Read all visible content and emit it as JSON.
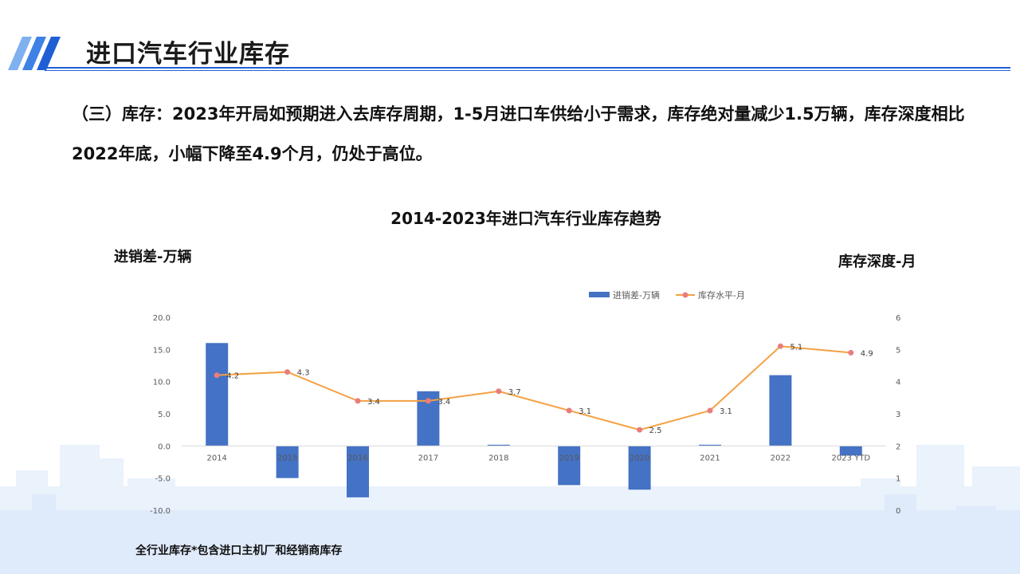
{
  "header": {
    "title": "进口汽车行业库存",
    "accent_color": "#1f5fd6"
  },
  "summary": {
    "text": "（三）库存：2023年开局如预期进入去库存周期，1-5月进口车供给小于需求，库存绝对量减少1.5万辆，库存深度相比2022年底，小幅下降至4.9个月，仍处于高位。"
  },
  "chart_data": {
    "type": "bar+line",
    "title": "2014-2023年进口汽车行业库存趋势",
    "left_axis_title": "进销差-万辆",
    "right_axis_title": "库存深度-月",
    "categories": [
      "2014",
      "2015",
      "2016",
      "2017",
      "2018",
      "2019",
      "2020",
      "2021",
      "2022",
      "2023 YTD"
    ],
    "series": [
      {
        "name": "进销差-万辆",
        "type": "bar",
        "axis": "left",
        "color": "#4472c4",
        "values": [
          16.0,
          -5.0,
          -8.0,
          8.5,
          0.1,
          -6.1,
          -6.8,
          0.1,
          11.0,
          -1.5
        ]
      },
      {
        "name": "库存水平-月",
        "type": "line",
        "axis": "right",
        "color": "#f4a142",
        "marker_color": "#e97d7d",
        "values": [
          4.2,
          4.3,
          3.4,
          3.4,
          3.7,
          3.1,
          2.5,
          3.1,
          5.1,
          4.9
        ],
        "labels": [
          "4.2",
          "4.3",
          "3.4",
          "3.4",
          "3.7",
          "3.1",
          "2.5",
          "3.1",
          "5.1",
          "4.9"
        ]
      }
    ],
    "left_axis": {
      "min": -10,
      "max": 20,
      "step": 5,
      "tick_labels": [
        "-10.0",
        "-5.0",
        "0.0",
        "5.0",
        "10.0",
        "15.0",
        "20.0"
      ]
    },
    "right_axis": {
      "min": 0,
      "max": 6,
      "step": 1,
      "tick_labels": [
        "0",
        "1",
        "2",
        "3",
        "4",
        "5",
        "6"
      ]
    },
    "legend": {
      "position": "top-center",
      "items": [
        "进销差-万辆",
        "库存水平-月"
      ]
    },
    "grid": false
  },
  "footnote": "全行业库存*包含进口主机厂和经销商库存"
}
